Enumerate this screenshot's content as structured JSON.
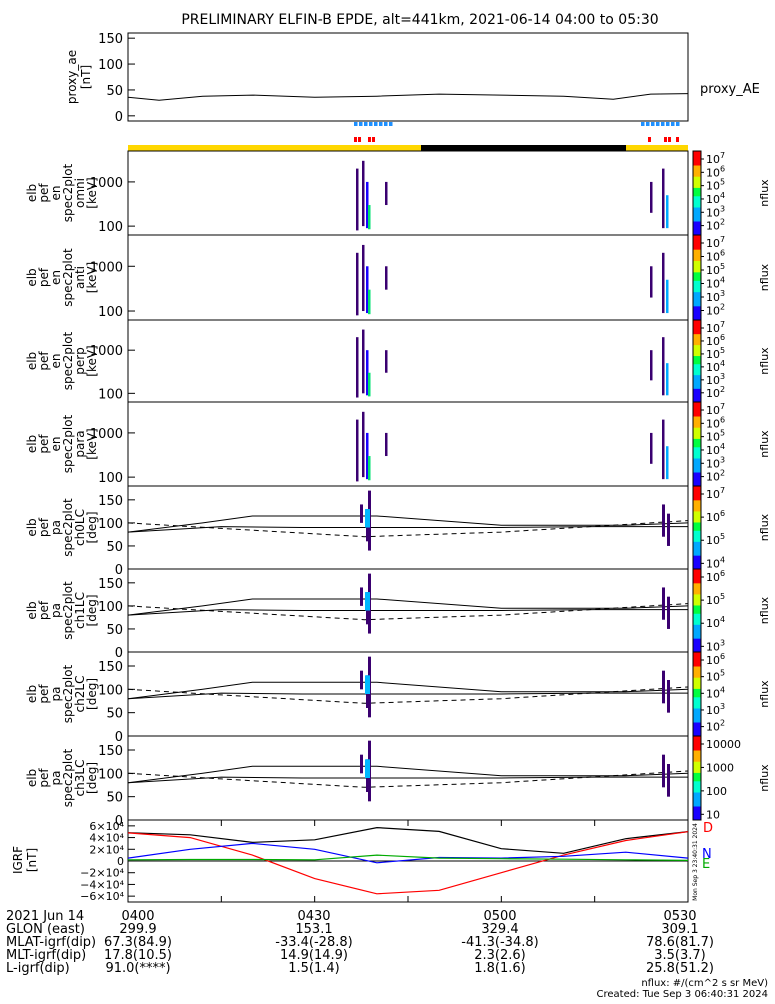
{
  "title": "PRELIMINARY ELFIN-B EPDE, alt=441km, 2021-06-14 04:00 to 05:30",
  "colors": {
    "proxy_line": "#000000",
    "segment_blue": "#1e90ff",
    "segment_red": "#ff0000",
    "sunlit_bar": "#ffd700",
    "shadow_bar": "#000000",
    "igrf_D": "#ff0000",
    "igrf_N": "#0000ff",
    "igrf_E": "#00aa00",
    "igrf_total": "#000000"
  },
  "chart_data": [
    {
      "type": "line",
      "name": "proxy_ae",
      "ylabel_lines": [
        "proxy_ae",
        "[nT]"
      ],
      "ylim": [
        -10,
        160
      ],
      "yticks": [
        "150",
        "100",
        "50",
        "0"
      ],
      "legend": "proxy_AE",
      "x_minutes": [
        0,
        5,
        12,
        20,
        30,
        40,
        50,
        60,
        70,
        78,
        84,
        90
      ],
      "values": [
        36,
        30,
        38,
        40,
        36,
        38,
        42,
        40,
        38,
        32,
        42,
        43
      ]
    },
    {
      "type": "heatmap",
      "name": "energy-omni",
      "ylabel_lines": [
        "elb",
        "pef",
        "en",
        "spec2plot",
        "omni",
        "[keV]"
      ],
      "ylim": [
        63,
        5000
      ],
      "log_y": true,
      "yticks": [
        "1000",
        "100"
      ],
      "zlabel": "nflux",
      "zticks": [
        "10^7",
        "10^6",
        "10^5",
        "10^4",
        "10^3",
        "10^2"
      ]
    },
    {
      "type": "heatmap",
      "name": "energy-anti",
      "ylabel_lines": [
        "elb",
        "pef",
        "en",
        "spec2plot",
        "anti",
        "[keV]"
      ],
      "ylim": [
        63,
        5000
      ],
      "log_y": true,
      "yticks": [
        "1000",
        "100"
      ],
      "zlabel": "nflux",
      "zticks": [
        "10^7",
        "10^6",
        "10^5",
        "10^4",
        "10^3",
        "10^2"
      ]
    },
    {
      "type": "heatmap",
      "name": "energy-perp",
      "ylabel_lines": [
        "elb",
        "pef",
        "en",
        "spec2plot",
        "perp",
        "[keV]"
      ],
      "ylim": [
        63,
        5000
      ],
      "log_y": true,
      "yticks": [
        "1000",
        "100"
      ],
      "zlabel": "nflux",
      "zticks": [
        "10^7",
        "10^6",
        "10^5",
        "10^4",
        "10^3",
        "10^2"
      ]
    },
    {
      "type": "heatmap",
      "name": "energy-para",
      "ylabel_lines": [
        "elb",
        "pef",
        "en",
        "spec2plot",
        "para",
        "[keV]"
      ],
      "ylim": [
        63,
        5000
      ],
      "log_y": true,
      "yticks": [
        "1000",
        "100"
      ],
      "zlabel": "nflux",
      "zticks": [
        "10^7",
        "10^6",
        "10^5",
        "10^4",
        "10^3",
        "10^2"
      ]
    },
    {
      "type": "heatmap",
      "name": "pa-ch0LC",
      "ylabel_lines": [
        "elb",
        "pef",
        "pa",
        "spec2plot",
        "ch0LC",
        "[deg]"
      ],
      "ylim": [
        0,
        180
      ],
      "yticks": [
        "150",
        "100",
        "50",
        "0"
      ],
      "zlabel": "nflux",
      "zticks": [
        "10^7",
        "10^6",
        "10^5",
        "10^4"
      ]
    },
    {
      "type": "heatmap",
      "name": "pa-ch1LC",
      "ylabel_lines": [
        "elb",
        "pef",
        "pa",
        "spec2plot",
        "ch1LC",
        "[deg]"
      ],
      "ylim": [
        0,
        180
      ],
      "yticks": [
        "150",
        "100",
        "50",
        "0"
      ],
      "zlabel": "nflux",
      "zticks": [
        "10^6",
        "10^5",
        "10^4",
        "10^3"
      ]
    },
    {
      "type": "heatmap",
      "name": "pa-ch2LC",
      "ylabel_lines": [
        "elb",
        "pef",
        "pa",
        "spec2plot",
        "ch2LC",
        "[deg]"
      ],
      "ylim": [
        0,
        180
      ],
      "yticks": [
        "150",
        "100",
        "50",
        "0"
      ],
      "zlabel": "nflux",
      "zticks": [
        "10^6",
        "10^5",
        "10^4",
        "10^3",
        "10^2"
      ]
    },
    {
      "type": "heatmap",
      "name": "pa-ch3LC",
      "ylabel_lines": [
        "elb",
        "pef",
        "pa",
        "spec2plot",
        "ch3LC",
        "[deg]"
      ],
      "ylim": [
        0,
        180
      ],
      "yticks": [
        "150",
        "100",
        "50",
        "0"
      ],
      "zlabel": "nflux",
      "zticks": [
        "10000",
        "1000",
        "100",
        "10"
      ]
    },
    {
      "type": "line",
      "name": "igrf",
      "ylabel_lines": [
        "IGRF",
        "[nT]"
      ],
      "ylim": [
        -70000,
        70000
      ],
      "yticks": [
        "6×10⁴",
        "4×10⁴",
        "2×10⁴",
        "0",
        "−2×10⁴",
        "−4×10⁴",
        "−6×10⁴"
      ],
      "legend": [
        "D",
        "N",
        "E"
      ],
      "x_minutes": [
        0,
        10,
        20,
        30,
        40,
        50,
        60,
        70,
        80,
        90
      ],
      "series": [
        {
          "name": "D",
          "values": [
            48000,
            40000,
            10000,
            -30000,
            -56000,
            -50000,
            -20000,
            10000,
            35000,
            50000
          ]
        },
        {
          "name": "N",
          "values": [
            5000,
            20000,
            30000,
            20000,
            -3000,
            6000,
            5000,
            8000,
            15000,
            5000
          ]
        },
        {
          "name": "E",
          "values": [
            2000,
            2500,
            2500,
            2000,
            10000,
            5000,
            4000,
            3000,
            2000,
            1000
          ]
        }
      ]
    }
  ],
  "footer": {
    "row_labels": [
      "2021 Jun 14",
      "GLON (east)",
      "MLAT-igrf(dip)",
      "MLT-igrf(dip)",
      "L-igrf(dip)"
    ],
    "columns": [
      [
        "0400",
        "299.9",
        "67.3(84.9)",
        "17.8(10.5)",
        "91.0(****)"
      ],
      [
        "0430",
        "153.1",
        "-33.4(-28.8)",
        "14.9(14.9)",
        "1.5(1.4)"
      ],
      [
        "0500",
        "329.4",
        "-41.3(-34.8)",
        "2.3(2.6)",
        "1.8(1.6)"
      ],
      [
        "0530",
        "309.1",
        "78.6(81.7)",
        "3.5(3.7)",
        "25.8(51.2)"
      ]
    ],
    "units": "nflux: #/(cm^2 s sr MeV)",
    "created": "Created: Tue Sep  3 06:40:31 2024",
    "vertical_stamp": "Mon Sep  3 23:40:31 2024"
  }
}
